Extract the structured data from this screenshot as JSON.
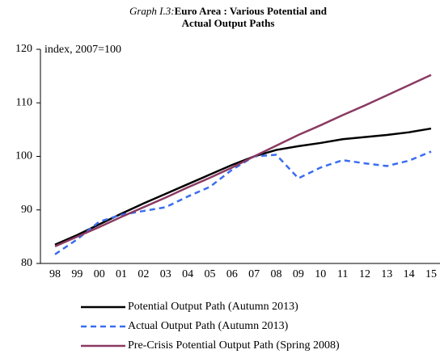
{
  "chart_data": {
    "type": "line",
    "title_label": "Graph I.3:",
    "title": "Euro Area : Various Potential and Actual Output Paths",
    "y_label": "index, 2007=100",
    "categories": [
      "98",
      "99",
      "00",
      "01",
      "02",
      "03",
      "04",
      "05",
      "06",
      "07",
      "08",
      "09",
      "10",
      "11",
      "12",
      "13",
      "14",
      "15"
    ],
    "series": [
      {
        "name": "Potential Output Path (Autumn 2013)",
        "color": "#000000",
        "dash": false,
        "values": [
          83.5,
          85.3,
          87.3,
          89.3,
          91.2,
          93.0,
          94.8,
          96.6,
          98.4,
          100,
          101.2,
          101.9,
          102.5,
          103.2,
          103.6,
          104.0,
          104.5,
          105.2
        ]
      },
      {
        "name": "Actual Output Path (Autumn 2013)",
        "color": "#3a6df0",
        "dash": true,
        "values": [
          81.7,
          84.5,
          87.8,
          89.1,
          89.8,
          90.5,
          92.5,
          94.3,
          97.5,
          100,
          100.3,
          95.9,
          97.9,
          99.3,
          98.7,
          98.2,
          99.2,
          100.9
        ]
      },
      {
        "name": "Pre-Crisis Potential Output Path (Spring 2008)",
        "color": "#8b3a62",
        "dash": false,
        "values": [
          83.2,
          85.0,
          86.8,
          88.7,
          90.5,
          92.3,
          94.2,
          96.0,
          97.9,
          100,
          102.0,
          104.0,
          105.8,
          107.7,
          109.5,
          111.4,
          113.3,
          115.2
        ]
      }
    ],
    "ylim": [
      80,
      120
    ],
    "yticks": [
      80,
      90,
      100,
      110,
      120
    ],
    "grid": false,
    "legend": "bottom"
  }
}
